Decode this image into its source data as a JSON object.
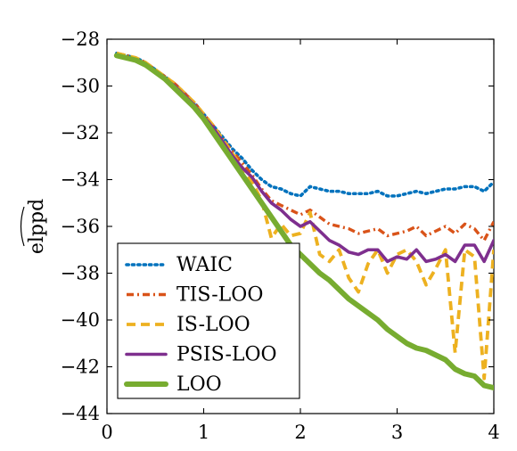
{
  "chart_data": {
    "type": "line",
    "title": "",
    "xlabel": "",
    "ylabel": "elppd",
    "ylabel_has_hat": true,
    "xlim": [
      0,
      4
    ],
    "ylim": [
      -44,
      -28
    ],
    "xticks": [
      0,
      1,
      2,
      3,
      4
    ],
    "xtick_labels": [
      "0",
      "1",
      "2",
      "3",
      "4"
    ],
    "yticks": [
      -28,
      -30,
      -32,
      -34,
      -36,
      -38,
      -40,
      -42,
      -44
    ],
    "ytick_labels": [
      "−28",
      "−30",
      "−32",
      "−34",
      "−36",
      "−38",
      "−40",
      "−42",
      "−44"
    ],
    "grid": false,
    "legend_position": "bottom-left",
    "x": [
      0.1,
      0.2,
      0.3,
      0.4,
      0.5,
      0.6,
      0.7,
      0.8,
      0.9,
      1.0,
      1.1,
      1.2,
      1.3,
      1.4,
      1.5,
      1.6,
      1.7,
      1.8,
      1.9,
      2.0,
      2.1,
      2.2,
      2.3,
      2.4,
      2.5,
      2.6,
      2.7,
      2.8,
      2.9,
      3.0,
      3.1,
      3.2,
      3.3,
      3.4,
      3.5,
      3.6,
      3.7,
      3.8,
      3.9,
      4.0
    ],
    "series": [
      {
        "name": "WAIC",
        "color": "#0072bd",
        "style": "dotted",
        "values": [
          -28.6,
          -28.7,
          -28.8,
          -29.0,
          -29.3,
          -29.6,
          -29.9,
          -30.3,
          -30.7,
          -31.2,
          -31.7,
          -32.2,
          -32.7,
          -33.1,
          -33.6,
          -34.0,
          -34.3,
          -34.4,
          -34.6,
          -34.7,
          -34.3,
          -34.4,
          -34.5,
          -34.5,
          -34.6,
          -34.6,
          -34.6,
          -34.5,
          -34.7,
          -34.7,
          -34.6,
          -34.5,
          -34.6,
          -34.5,
          -34.4,
          -34.4,
          -34.3,
          -34.3,
          -34.5,
          -34.1
        ]
      },
      {
        "name": "TIS-LOO",
        "color": "#d95319",
        "style": "dashdot",
        "values": [
          -28.6,
          -28.7,
          -28.8,
          -29.0,
          -29.3,
          -29.6,
          -29.9,
          -30.3,
          -30.7,
          -31.2,
          -31.7,
          -32.3,
          -32.8,
          -33.3,
          -33.8,
          -34.4,
          -34.9,
          -35.1,
          -35.3,
          -35.5,
          -35.3,
          -35.6,
          -35.9,
          -36.0,
          -36.1,
          -36.3,
          -36.2,
          -36.1,
          -36.4,
          -36.3,
          -36.2,
          -36.0,
          -36.4,
          -36.2,
          -36.0,
          -36.3,
          -35.9,
          -36.1,
          -36.6,
          -35.8
        ]
      },
      {
        "name": "IS-LOO",
        "color": "#edb120",
        "style": "dashed",
        "values": [
          -28.6,
          -28.7,
          -28.8,
          -29.0,
          -29.3,
          -29.6,
          -29.9,
          -30.3,
          -30.7,
          -31.2,
          -31.7,
          -32.3,
          -32.9,
          -33.5,
          -34.1,
          -34.9,
          -36.5,
          -35.9,
          -36.4,
          -36.3,
          -35.4,
          -37.2,
          -37.5,
          -37.0,
          -38.2,
          -38.8,
          -37.6,
          -37.0,
          -38.0,
          -37.2,
          -37.0,
          -37.5,
          -38.5,
          -37.8,
          -37.0,
          -41.4,
          -37.0,
          -37.3,
          -42.5,
          -37.0
        ]
      },
      {
        "name": "PSIS-LOO",
        "color": "#7e2f8e",
        "style": "solid",
        "values": [
          -28.7,
          -28.8,
          -28.9,
          -29.1,
          -29.4,
          -29.7,
          -30.0,
          -30.4,
          -30.8,
          -31.3,
          -31.8,
          -32.4,
          -33.0,
          -33.5,
          -33.9,
          -34.5,
          -35.0,
          -35.3,
          -35.7,
          -36.0,
          -35.8,
          -36.2,
          -36.6,
          -36.8,
          -37.1,
          -37.2,
          -37.0,
          -37.0,
          -37.5,
          -37.3,
          -37.4,
          -37.0,
          -37.5,
          -37.4,
          -37.2,
          -37.5,
          -36.8,
          -36.8,
          -37.5,
          -36.6
        ]
      },
      {
        "name": "LOO",
        "color": "#77ac30",
        "style": "solid-thick",
        "values": [
          -28.7,
          -28.8,
          -28.9,
          -29.1,
          -29.4,
          -29.7,
          -30.1,
          -30.5,
          -30.9,
          -31.4,
          -32.0,
          -32.6,
          -33.2,
          -33.8,
          -34.4,
          -35.0,
          -35.6,
          -36.2,
          -36.8,
          -37.2,
          -37.6,
          -38.0,
          -38.3,
          -38.7,
          -39.1,
          -39.4,
          -39.7,
          -40.0,
          -40.4,
          -40.7,
          -41.0,
          -41.2,
          -41.3,
          -41.5,
          -41.7,
          -42.1,
          -42.3,
          -42.4,
          -42.8,
          -42.9
        ]
      }
    ]
  }
}
